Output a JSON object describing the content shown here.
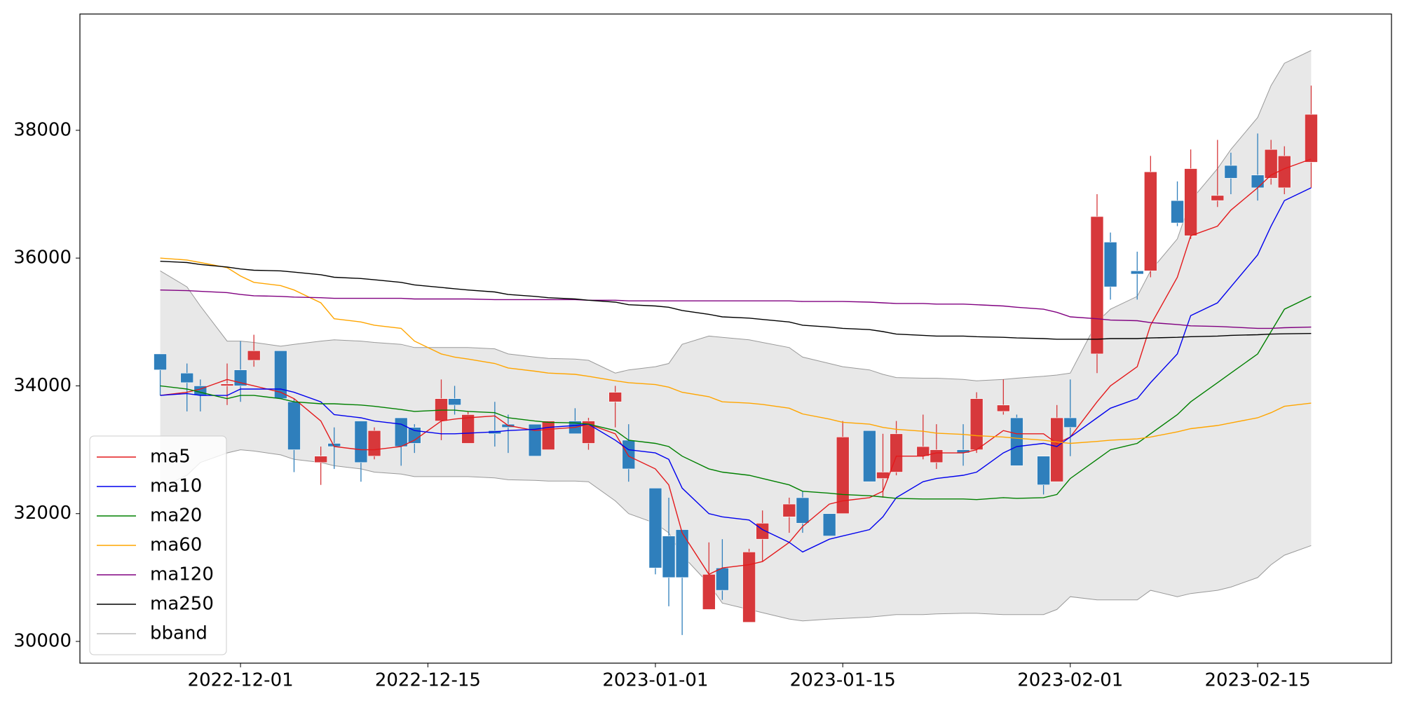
{
  "chart_data": {
    "type": "candlestick",
    "x": [
      "2022-11-25",
      "2022-11-27",
      "2022-11-28",
      "2022-11-30",
      "2022-12-01",
      "2022-12-02",
      "2022-12-04",
      "2022-12-05",
      "2022-12-07",
      "2022-12-08",
      "2022-12-10",
      "2022-12-11",
      "2022-12-13",
      "2022-12-14",
      "2022-12-16",
      "2022-12-17",
      "2022-12-18",
      "2022-12-20",
      "2022-12-21",
      "2022-12-23",
      "2022-12-24",
      "2022-12-26",
      "2022-12-27",
      "2022-12-29",
      "2022-12-30",
      "2023-01-01",
      "2023-01-02",
      "2023-01-03",
      "2023-01-05",
      "2023-01-06",
      "2023-01-08",
      "2023-01-09",
      "2023-01-11",
      "2023-01-12",
      "2023-01-14",
      "2023-01-15",
      "2023-01-17",
      "2023-01-18",
      "2023-01-19",
      "2023-01-21",
      "2023-01-22",
      "2023-01-24",
      "2023-01-25",
      "2023-01-27",
      "2023-01-28",
      "2023-01-30",
      "2023-01-31",
      "2023-02-01",
      "2023-02-03",
      "2023-02-04",
      "2023-02-06",
      "2023-02-07",
      "2023-02-09",
      "2023-02-10",
      "2023-02-12",
      "2023-02-13",
      "2023-02-15",
      "2023-02-16",
      "2023-02-17",
      "2023-02-19"
    ],
    "open": [
      34500,
      34200,
      34000,
      34000,
      34250,
      34400,
      34550,
      33750,
      32800,
      33100,
      33450,
      32900,
      33500,
      33350,
      33450,
      33800,
      33100,
      33300,
      33400,
      33400,
      33000,
      33450,
      33100,
      33750,
      33150,
      32400,
      31650,
      31750,
      30500,
      31150,
      30300,
      31600,
      31950,
      32250,
      32000,
      32000,
      33300,
      32550,
      32650,
      32900,
      32800,
      33000,
      33000,
      33600,
      33500,
      32900,
      32500,
      33500,
      34500,
      36250,
      35800,
      35800,
      36900,
      36350,
      36900,
      37450,
      37300,
      37250,
      37100,
      37500
    ],
    "high": [
      34500,
      34350,
      34100,
      34350,
      34700,
      34800,
      34550,
      33800,
      33050,
      33350,
      33450,
      33350,
      33500,
      33400,
      34100,
      34000,
      33600,
      33750,
      33550,
      33400,
      33450,
      33650,
      33500,
      34000,
      33400,
      32400,
      32250,
      31750,
      31550,
      31600,
      31450,
      32050,
      32250,
      32350,
      32000,
      33450,
      33300,
      33250,
      33450,
      33550,
      33400,
      33400,
      33900,
      34100,
      33550,
      32900,
      33700,
      34100,
      37000,
      36400,
      36100,
      37600,
      37200,
      37700,
      37850,
      37650,
      37950,
      37850,
      37750,
      38700
    ],
    "low": [
      33850,
      33600,
      33600,
      33700,
      33750,
      34300,
      33800,
      32650,
      32450,
      32700,
      32500,
      32850,
      32750,
      32950,
      33150,
      33550,
      33100,
      33050,
      32950,
      32900,
      33000,
      33250,
      33000,
      33350,
      32500,
      31050,
      30550,
      30100,
      30500,
      30650,
      30300,
      31250,
      31700,
      31700,
      31650,
      32000,
      32500,
      32250,
      32600,
      32850,
      32700,
      32750,
      32950,
      33550,
      32750,
      32300,
      32500,
      32900,
      34200,
      35350,
      35350,
      35700,
      36500,
      36300,
      36800,
      37000,
      36900,
      37150,
      37000,
      37100
    ],
    "close": [
      34250,
      34050,
      33850,
      34030,
      34000,
      34550,
      33800,
      33000,
      32900,
      33050,
      32800,
      33300,
      33050,
      33100,
      33800,
      33700,
      33550,
      33250,
      33350,
      32900,
      33450,
      33250,
      33450,
      33900,
      32700,
      31150,
      31000,
      31000,
      31050,
      30800,
      31400,
      31850,
      32150,
      31850,
      31650,
      33200,
      32500,
      32650,
      33250,
      33050,
      33000,
      32950,
      33800,
      33700,
      32750,
      32450,
      33500,
      33350,
      36650,
      35550,
      35750,
      37350,
      36550,
      37400,
      36980,
      37250,
      37100,
      37700,
      37600,
      38250
    ],
    "up_color": "#d7383b",
    "down_color": "#2f7fbc",
    "series": [
      {
        "name": "ma5",
        "color": "#e41a1c",
        "values": [
          33850,
          33900,
          33950,
          34100,
          34050,
          34000,
          33900,
          33800,
          33450,
          33050,
          33000,
          33000,
          33050,
          33150,
          33450,
          33480,
          33500,
          33530,
          33380,
          33300,
          33320,
          33350,
          33400,
          33250,
          32900,
          32700,
          32450,
          31700,
          31050,
          31150,
          31200,
          31250,
          31550,
          31800,
          32150,
          32200,
          32250,
          32350,
          32900,
          32900,
          32950,
          32950,
          33000,
          33300,
          33250,
          33250,
          33100,
          33200,
          33750,
          34000,
          34300,
          34950,
          35700,
          36350,
          36500,
          36750,
          37100,
          37300,
          37400,
          37550
        ]
      },
      {
        "name": "ma10",
        "color": "#0000ee",
        "values": [
          33850,
          33880,
          33850,
          33850,
          33950,
          33950,
          33950,
          33900,
          33750,
          33550,
          33500,
          33450,
          33400,
          33300,
          33250,
          33250,
          33260,
          33280,
          33300,
          33320,
          33350,
          33380,
          33400,
          33150,
          33000,
          32950,
          32850,
          32400,
          32000,
          31950,
          31900,
          31750,
          31550,
          31400,
          31600,
          31650,
          31750,
          31950,
          32250,
          32500,
          32550,
          32600,
          32650,
          32950,
          33050,
          33100,
          33050,
          33200,
          33500,
          33650,
          33800,
          34050,
          34500,
          35100,
          35300,
          35550,
          36050,
          36500,
          36900,
          37100
        ]
      },
      {
        "name": "ma20",
        "color": "#008000",
        "values": [
          34000,
          33950,
          33900,
          33800,
          33850,
          33850,
          33800,
          33750,
          33720,
          33720,
          33700,
          33680,
          33630,
          33600,
          33620,
          33620,
          33600,
          33580,
          33500,
          33450,
          33430,
          33420,
          33400,
          33300,
          33150,
          33100,
          33050,
          32900,
          32700,
          32650,
          32600,
          32550,
          32450,
          32350,
          32320,
          32300,
          32280,
          32260,
          32240,
          32230,
          32230,
          32230,
          32220,
          32250,
          32240,
          32250,
          32300,
          32550,
          32850,
          33000,
          33100,
          33250,
          33550,
          33750,
          34050,
          34200,
          34500,
          34850,
          35200,
          35400
        ]
      },
      {
        "name": "ma60",
        "color": "#ffa500",
        "values": [
          36000,
          35970,
          35930,
          35850,
          35720,
          35620,
          35570,
          35500,
          35300,
          35050,
          35000,
          34950,
          34900,
          34700,
          34500,
          34450,
          34420,
          34350,
          34280,
          34230,
          34200,
          34180,
          34150,
          34080,
          34050,
          34020,
          33980,
          33900,
          33830,
          33750,
          33730,
          33710,
          33650,
          33560,
          33480,
          33430,
          33400,
          33350,
          33320,
          33290,
          33260,
          33240,
          33220,
          33200,
          33180,
          33150,
          33120,
          33100,
          33130,
          33150,
          33170,
          33200,
          33280,
          33330,
          33380,
          33420,
          33500,
          33580,
          33680,
          33730
        ]
      },
      {
        "name": "ma120",
        "color": "#800080",
        "values": [
          35500,
          35490,
          35480,
          35460,
          35430,
          35410,
          35400,
          35390,
          35380,
          35370,
          35370,
          35370,
          35370,
          35360,
          35360,
          35360,
          35360,
          35350,
          35350,
          35350,
          35350,
          35350,
          35340,
          35340,
          35330,
          35330,
          35330,
          35330,
          35330,
          35330,
          35330,
          35330,
          35330,
          35320,
          35320,
          35320,
          35310,
          35300,
          35290,
          35290,
          35280,
          35280,
          35270,
          35250,
          35230,
          35200,
          35150,
          35080,
          35050,
          35030,
          35020,
          34990,
          34960,
          34940,
          34930,
          34920,
          34900,
          34900,
          34910,
          34920
        ]
      },
      {
        "name": "ma250",
        "color": "#000000",
        "values": [
          35950,
          35930,
          35900,
          35860,
          35830,
          35810,
          35800,
          35780,
          35740,
          35700,
          35680,
          35660,
          35620,
          35580,
          35540,
          35520,
          35500,
          35470,
          35430,
          35400,
          35380,
          35360,
          35340,
          35310,
          35270,
          35250,
          35230,
          35180,
          35120,
          35080,
          35060,
          35040,
          35000,
          34950,
          34920,
          34900,
          34880,
          34850,
          34810,
          34790,
          34780,
          34780,
          34770,
          34760,
          34750,
          34740,
          34730,
          34730,
          34730,
          34740,
          34740,
          34750,
          34760,
          34770,
          34780,
          34790,
          34800,
          34810,
          34815,
          34820
        ]
      }
    ],
    "band": {
      "name": "bband",
      "color": "#999999",
      "fill": "#e5e5e5",
      "upper": [
        35800,
        35550,
        35250,
        34700,
        34700,
        34680,
        34620,
        34650,
        34700,
        34720,
        34700,
        34680,
        34650,
        34600,
        34600,
        34600,
        34600,
        34580,
        34500,
        34450,
        34430,
        34420,
        34400,
        34200,
        34250,
        34300,
        34350,
        34650,
        34780,
        34760,
        34720,
        34680,
        34600,
        34450,
        34350,
        34300,
        34250,
        34180,
        34130,
        34120,
        34120,
        34100,
        34080,
        34100,
        34120,
        34150,
        34170,
        34200,
        35000,
        35200,
        35400,
        35800,
        36300,
        36900,
        37400,
        37700,
        38200,
        38700,
        39050,
        39250
      ],
      "lower": [
        32400,
        32600,
        32800,
        32950,
        33000,
        32980,
        32920,
        32850,
        32800,
        32750,
        32700,
        32650,
        32620,
        32580,
        32580,
        32580,
        32580,
        32560,
        32530,
        32520,
        32510,
        32510,
        32500,
        32200,
        32000,
        31850,
        31700,
        31350,
        30900,
        30600,
        30500,
        30450,
        30350,
        30320,
        30350,
        30360,
        30380,
        30400,
        30420,
        30420,
        30430,
        30440,
        30440,
        30420,
        30420,
        30420,
        30500,
        30700,
        30650,
        30650,
        30650,
        30800,
        30700,
        30750,
        30800,
        30850,
        31000,
        31200,
        31350,
        31500
      ]
    },
    "xlim": [
      "2022-11-19",
      "2023-02-25"
    ],
    "xticks": [
      "2022-12-01",
      "2022-12-15",
      "2023-01-01",
      "2023-01-15",
      "2023-02-01",
      "2023-02-15"
    ],
    "ylim": [
      29660,
      39820
    ],
    "yticks": [
      30000,
      32000,
      34000,
      36000,
      38000
    ],
    "legend": "lower left"
  }
}
